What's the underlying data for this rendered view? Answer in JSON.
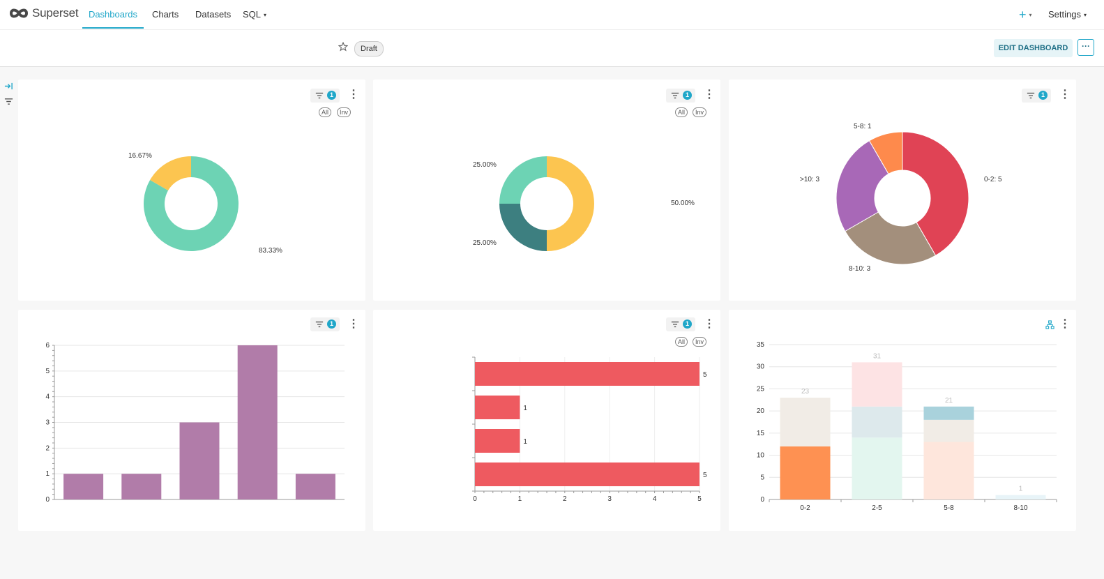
{
  "nav": {
    "brand": "Superset",
    "items": [
      {
        "label": "Dashboards",
        "active": true
      },
      {
        "label": "Charts"
      },
      {
        "label": "Datasets"
      },
      {
        "label": "SQL"
      }
    ],
    "settings": "Settings"
  },
  "header": {
    "status": "Draft",
    "edit_label": "EDIT DASHBOARD",
    "more_label": "···"
  },
  "colors": {
    "accent": "#20a7c9",
    "bar_purple": "#b17ca9",
    "bar_red": "#ee5a60"
  },
  "cards": [
    {
      "filter_count": "1",
      "pill_all": "All",
      "pill_inv": "Inv"
    },
    {
      "filter_count": "1",
      "pill_all": "All",
      "pill_inv": "Inv"
    },
    {
      "filter_count": "1"
    },
    {
      "filter_count": "1"
    },
    {
      "filter_count": "1",
      "pill_all": "All",
      "pill_inv": "Inv"
    },
    {
      "icon": "hierarchy-icon"
    }
  ],
  "chart_data": [
    {
      "type": "pie",
      "slices": [
        {
          "label": "83.33%",
          "value": 83.33,
          "color": "#6dd3b4"
        },
        {
          "label": "16.67%",
          "value": 16.67,
          "color": "#fcc550"
        }
      ]
    },
    {
      "type": "pie",
      "slices": [
        {
          "label": "50.00%",
          "value": 50,
          "color": "#fcc550"
        },
        {
          "label": "25.00%",
          "value": 25,
          "color": "#3d7f80"
        },
        {
          "label": "25.00%",
          "value": 25,
          "color": "#6dd3b4"
        }
      ]
    },
    {
      "type": "pie",
      "slices": [
        {
          "label": "0-2: 5",
          "value": 5,
          "color": "#e04355"
        },
        {
          "label": "8-10: 3",
          "value": 3,
          "color": "#a38f7c"
        },
        {
          "label": ">10: 3",
          "value": 3,
          "color": "#a868b7"
        },
        {
          "label": "5-8: 1",
          "value": 1,
          "color": "#fe8a4c"
        }
      ]
    },
    {
      "type": "bar",
      "values": [
        1,
        1,
        3,
        6,
        1
      ],
      "ylim": [
        0,
        6
      ],
      "yticks": [
        "0",
        "1",
        "2",
        "3",
        "4",
        "5",
        "6"
      ]
    },
    {
      "type": "bar",
      "orientation": "horizontal",
      "values": [
        5,
        1,
        1,
        5
      ],
      "xlim": [
        0,
        5
      ],
      "xticks": [
        "0",
        "1",
        "2",
        "3",
        "4",
        "5"
      ]
    },
    {
      "type": "bar",
      "stacked": true,
      "categories": [
        "0-2",
        "2-5",
        "5-8",
        "8-10"
      ],
      "totals": [
        23,
        31,
        21,
        1
      ],
      "ylim": [
        0,
        35
      ],
      "yticks": [
        "0",
        "5",
        "10",
        "15",
        "20",
        "25",
        "30",
        "35"
      ],
      "segments": [
        [
          {
            "value": 12,
            "color": "#fe9152"
          },
          {
            "value": 11,
            "color": "#f1ece6"
          }
        ],
        [
          {
            "value": 14,
            "color": "#e3f6ef"
          },
          {
            "value": 7,
            "color": "#dde9ec"
          },
          {
            "value": 10,
            "color": "#fde3e4"
          }
        ],
        [
          {
            "value": 13,
            "color": "#fee6dc"
          },
          {
            "value": 5,
            "color": "#f1ece6"
          },
          {
            "value": 3,
            "color": "#a9d2dc"
          }
        ],
        [
          {
            "value": 1,
            "color": "#e8f4f8"
          }
        ]
      ]
    }
  ]
}
